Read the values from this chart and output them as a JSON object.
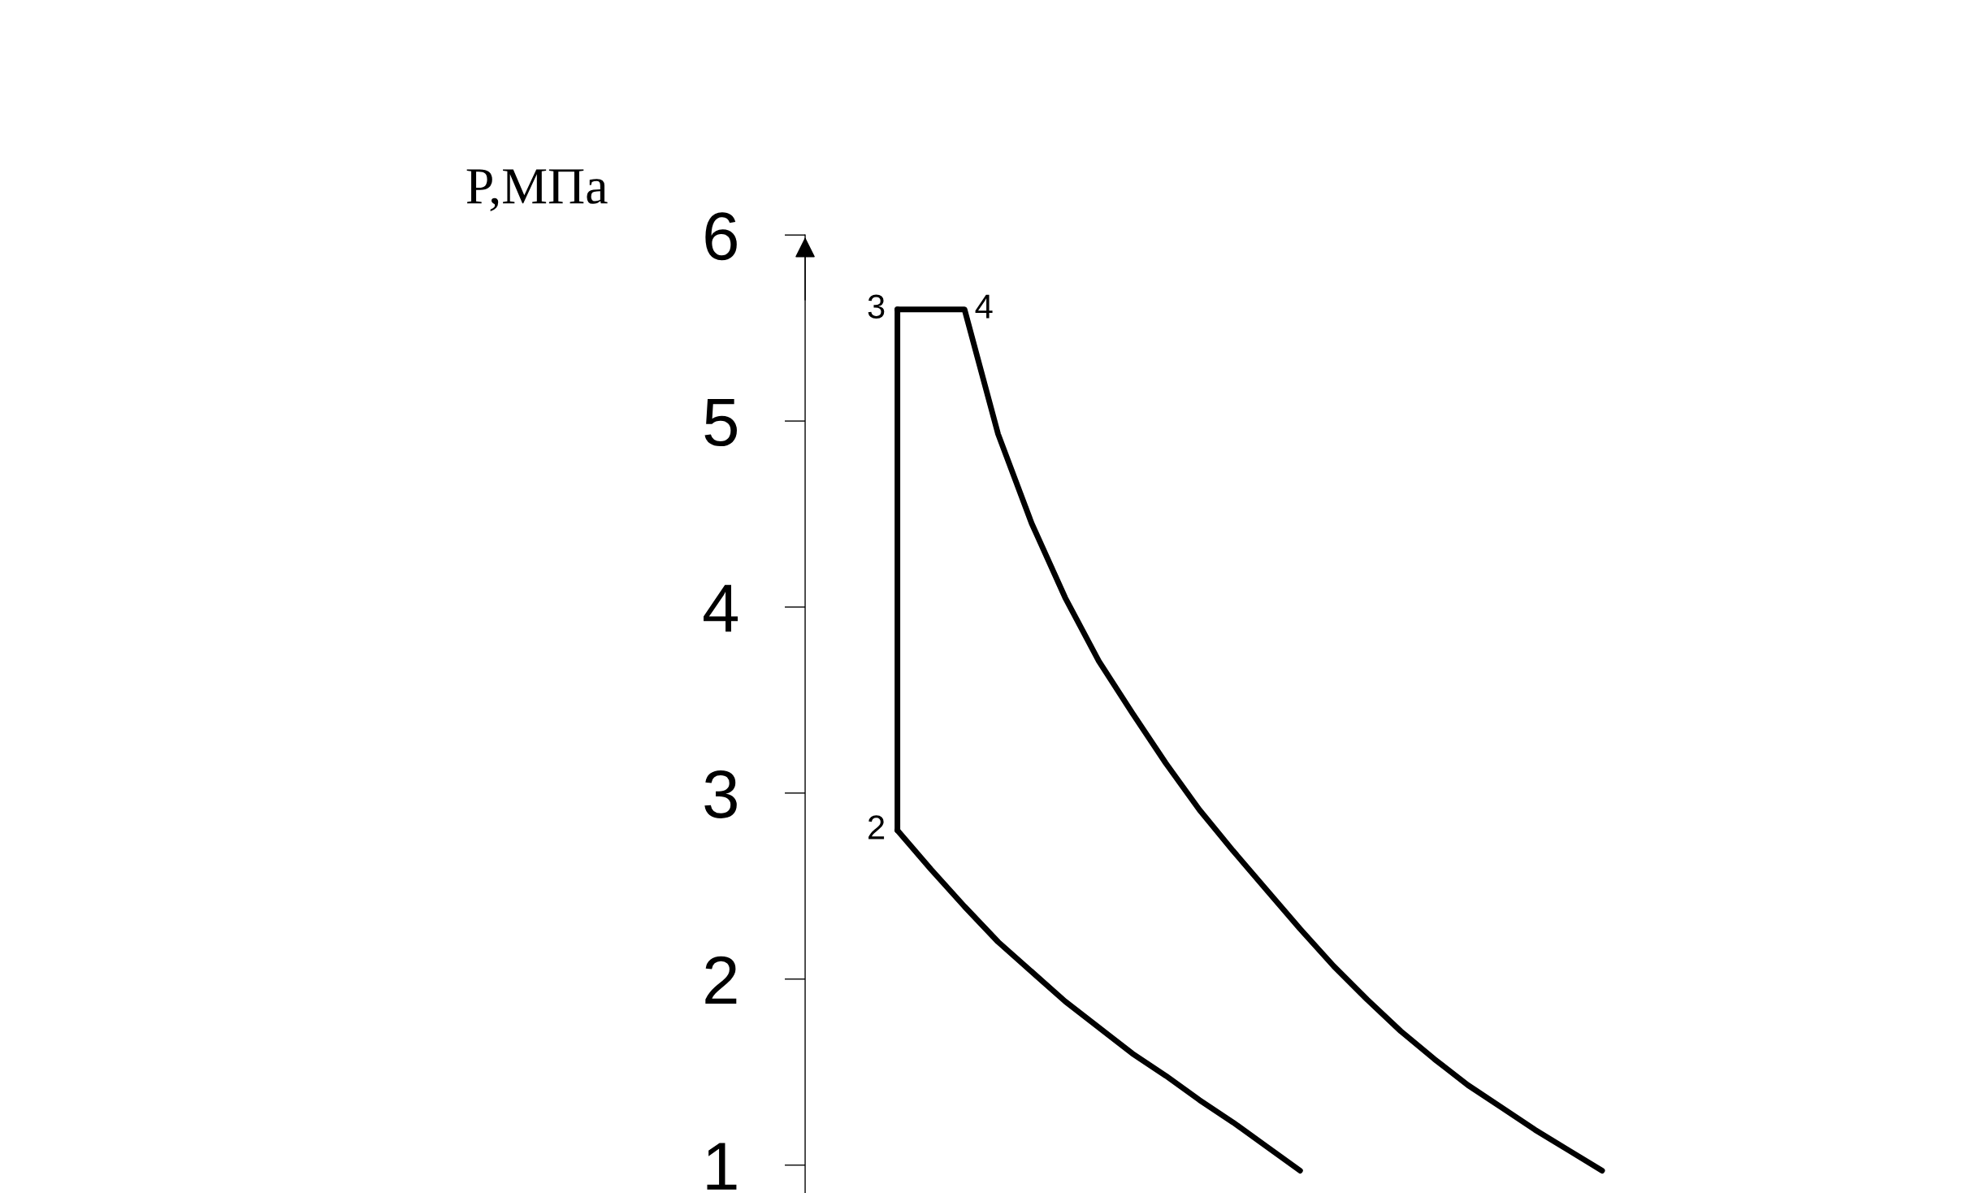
{
  "chart_data": {
    "type": "line",
    "ylabel": "P,МПа",
    "categories": [
      null,
      null,
      null,
      null,
      null,
      null,
      null,
      null,
      null,
      null,
      null,
      null,
      null,
      null,
      null,
      null,
      null,
      null,
      null,
      null,
      null,
      null,
      null,
      null,
      null,
      null,
      null,
      null,
      null,
      null,
      null,
      null,
      null
    ],
    "series": [
      {
        "color": "#000000",
        "values": [
          5.6,
          5.6,
          5.6,
          4.93,
          4.45,
          4.05,
          3.71,
          3.43,
          3.16,
          2.91,
          2.69,
          2.48,
          2.27,
          2.07,
          1.89,
          1.72,
          1.57,
          1.43,
          1.31,
          1.19,
          1.08,
          0.97,
          null,
          null,
          null,
          null,
          null,
          null,
          null,
          null,
          null,
          null,
          null
        ]
      },
      {
        "color": "#000000",
        "values": [
          2.8,
          2.59,
          2.39,
          2.2,
          2.04,
          1.88,
          1.74,
          1.6,
          1.48,
          1.35,
          1.23,
          1.1,
          0.97,
          null,
          null,
          null,
          null,
          null,
          null,
          null,
          null,
          null,
          null,
          null,
          null,
          null,
          null,
          null,
          null,
          null,
          null,
          null,
          null
        ]
      }
    ],
    "annotations": [
      "3",
      "4",
      "2"
    ],
    "ylim": [
      0.85,
      6
    ],
    "yticks": [
      1,
      2,
      3,
      4,
      5,
      6
    ],
    "tick_labels": "y",
    "marker": "none",
    "line_style": "solid"
  }
}
